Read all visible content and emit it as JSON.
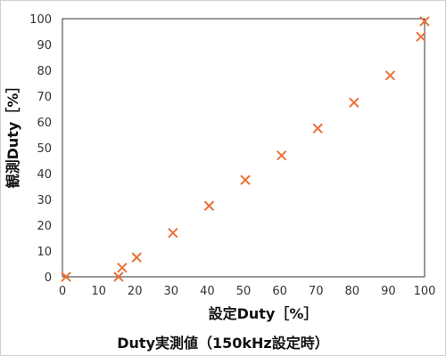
{
  "chart_data": {
    "type": "scatter",
    "title": "Duty実測値（150kHz設定時）",
    "xlabel": "設定Duty［%］",
    "ylabel": "観測Duty［%］",
    "xlim": [
      0,
      100
    ],
    "ylim": [
      0,
      100
    ],
    "xticks": [
      "0",
      "10",
      "20",
      "30",
      "40",
      "50",
      "60",
      "70",
      "80",
      "90",
      "100"
    ],
    "yticks": [
      "0",
      "10",
      "20",
      "30",
      "40",
      "50",
      "60",
      "70",
      "80",
      "90",
      "100"
    ],
    "grid": false,
    "marker": "x",
    "marker_color": "#e8733a",
    "points": [
      {
        "x": 1,
        "y": 0
      },
      {
        "x": 15.5,
        "y": 0
      },
      {
        "x": 16.5,
        "y": 3.5
      },
      {
        "x": 20.5,
        "y": 7.5
      },
      {
        "x": 30.5,
        "y": 17
      },
      {
        "x": 40.5,
        "y": 27.5
      },
      {
        "x": 50.5,
        "y": 37.5
      },
      {
        "x": 60.5,
        "y": 47
      },
      {
        "x": 70.5,
        "y": 57.5
      },
      {
        "x": 80.5,
        "y": 67.5
      },
      {
        "x": 90.5,
        "y": 78
      },
      {
        "x": 99,
        "y": 93
      },
      {
        "x": 100,
        "y": 99
      }
    ]
  }
}
